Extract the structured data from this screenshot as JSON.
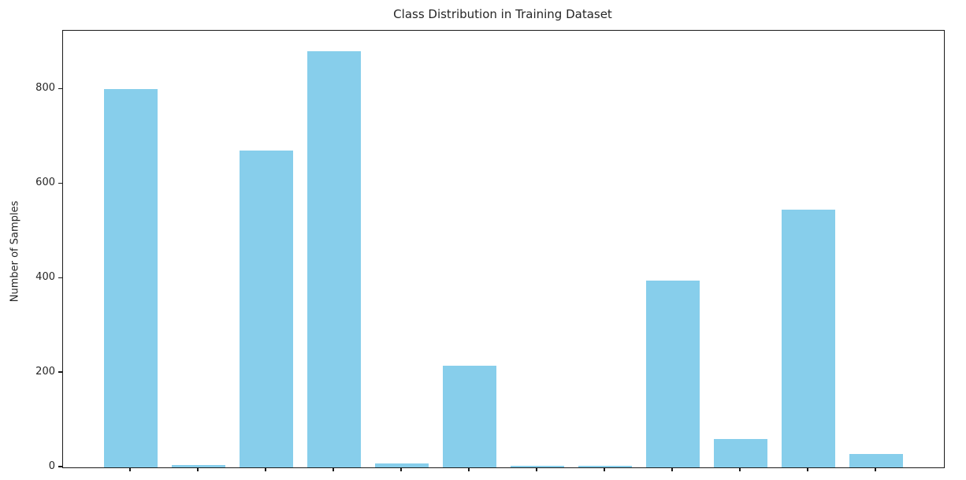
{
  "figure": {
    "background_color": "#ffffff",
    "spine_color": "#1a1a1a",
    "text_color": "#262626"
  },
  "chart_data": {
    "type": "bar",
    "title": "Class Distribution in Training Dataset",
    "xlabel": "",
    "ylabel": "Number of Samples",
    "n_bars": 12,
    "values": [
      800,
      5,
      670,
      880,
      8,
      215,
      3,
      3,
      395,
      60,
      545,
      28
    ],
    "x_tick_labels": null,
    "x_tick_labels_visible": false,
    "yticks": [
      0,
      200,
      400,
      600,
      800
    ],
    "ylim": [
      0,
      924
    ],
    "bar_color": "#87ceeb",
    "bar_width_fraction": 0.8,
    "grid": false,
    "legend": null
  }
}
